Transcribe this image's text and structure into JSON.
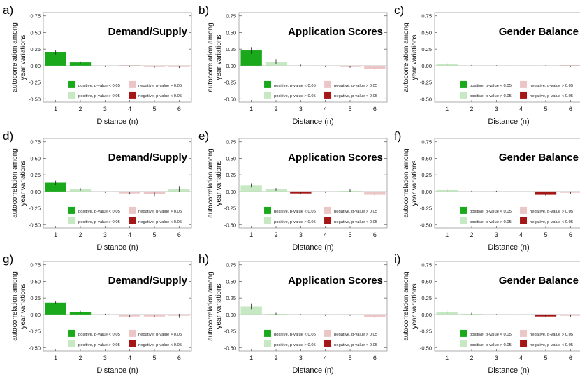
{
  "figure": {
    "y_label_line1": "autocorrelation among",
    "y_label_line2": "year variations",
    "x_label": "Distance (n)"
  },
  "colors": {
    "pos_sig": "#19a91b",
    "pos_nonsig": "#c6e8c2",
    "neg_nonsig": "#ecc6c6",
    "neg_sig": "#a51616",
    "error_bar": "#1a1a1a",
    "frame": "#9a9a9a"
  },
  "legend": {
    "pos_sig": "positive, p-value < 0.05",
    "pos_nonsig": "positive, p-value > 0.05",
    "neg_nonsig": "negative, p-value > 0.05",
    "neg_sig": "negative, p-value < 0.05"
  },
  "chart_data": [
    {
      "panel_label": "a)",
      "title": "Demand/Supply",
      "type": "bar",
      "categories": [
        "1",
        "2",
        "3",
        "4",
        "5",
        "6"
      ],
      "values": [
        0.2,
        0.05,
        -0.01,
        -0.01,
        -0.02,
        -0.02
      ],
      "errors": [
        0.03,
        0.015,
        0.01,
        0.01,
        0.01,
        0.015
      ],
      "significance": [
        "pos_sig",
        "pos_sig",
        "neg_nonsig",
        "neg_sig",
        "neg_nonsig",
        "neg_nonsig"
      ],
      "ylim": [
        -0.55,
        0.8
      ],
      "yticks": [
        "0.75",
        "0.50",
        "0.25",
        "0.00",
        "-0.25",
        "-0.50"
      ],
      "xlabel": "Distance (n)",
      "ylabel": "autocorrelation among year variations"
    },
    {
      "panel_label": "b)",
      "title": "Application Scores",
      "type": "bar",
      "categories": [
        "1",
        "2",
        "3",
        "4",
        "5",
        "6"
      ],
      "values": [
        0.23,
        0.06,
        0.0,
        -0.01,
        -0.02,
        -0.05
      ],
      "errors": [
        0.05,
        0.03,
        0.015,
        0.01,
        0.01,
        0.02
      ],
      "significance": [
        "pos_sig",
        "pos_nonsig",
        "neg_nonsig",
        "neg_nonsig",
        "neg_nonsig",
        "neg_nonsig"
      ],
      "ylim": [
        -0.55,
        0.8
      ],
      "yticks": [
        "0.75",
        "0.50",
        "0.25",
        "0.00",
        "-0.25",
        "-0.50"
      ],
      "xlabel": "Distance (n)",
      "ylabel": "autocorrelation among year variations"
    },
    {
      "panel_label": "c)",
      "title": "Gender Balance",
      "type": "bar",
      "categories": [
        "1",
        "2",
        "3",
        "4",
        "5",
        "6"
      ],
      "values": [
        0.02,
        0.0,
        0.0,
        0.0,
        0.0,
        -0.01
      ],
      "errors": [
        0.02,
        0.01,
        0.005,
        0.005,
        0.005,
        0.01
      ],
      "significance": [
        "pos_nonsig",
        "neg_nonsig",
        "neg_nonsig",
        "neg_nonsig",
        "neg_nonsig",
        "neg_sig"
      ],
      "ylim": [
        -0.55,
        0.8
      ],
      "yticks": [
        "0.75",
        "0.50",
        "0.25",
        "0.00",
        "-0.25",
        "-0.50"
      ],
      "xlabel": "Distance (n)",
      "ylabel": "autocorrelation among year variations"
    },
    {
      "panel_label": "d)",
      "title": "Demand/Supply",
      "type": "bar",
      "categories": [
        "1",
        "2",
        "3",
        "4",
        "5",
        "6"
      ],
      "values": [
        0.13,
        0.03,
        -0.01,
        -0.03,
        -0.04,
        0.04
      ],
      "errors": [
        0.03,
        0.02,
        0.01,
        0.015,
        0.04,
        0.04
      ],
      "significance": [
        "pos_sig",
        "pos_nonsig",
        "neg_nonsig",
        "neg_nonsig",
        "neg_nonsig",
        "pos_nonsig"
      ],
      "ylim": [
        -0.55,
        0.8
      ],
      "yticks": [
        "0.75",
        "0.50",
        "0.25",
        "0.00",
        "-0.25",
        "-0.50"
      ],
      "xlabel": "Distance (n)",
      "ylabel": "autocorrelation among year variations"
    },
    {
      "panel_label": "e)",
      "title": "Application Scores",
      "type": "bar",
      "categories": [
        "1",
        "2",
        "3",
        "4",
        "5",
        "6"
      ],
      "values": [
        0.09,
        0.03,
        -0.03,
        -0.01,
        0.01,
        -0.05
      ],
      "errors": [
        0.03,
        0.02,
        0.01,
        0.01,
        0.02,
        0.03
      ],
      "significance": [
        "pos_nonsig",
        "pos_nonsig",
        "neg_sig",
        "neg_nonsig",
        "pos_nonsig",
        "neg_nonsig"
      ],
      "ylim": [
        -0.55,
        0.8
      ],
      "yticks": [
        "0.75",
        "0.50",
        "0.25",
        "0.00",
        "-0.25",
        "-0.50"
      ],
      "xlabel": "Distance (n)",
      "ylabel": "autocorrelation among year variations"
    },
    {
      "panel_label": "f)",
      "title": "Gender Balance",
      "type": "bar",
      "categories": [
        "1",
        "2",
        "3",
        "4",
        "5",
        "6"
      ],
      "values": [
        0.02,
        0.0,
        0.0,
        -0.01,
        -0.05,
        -0.02
      ],
      "errors": [
        0.03,
        0.01,
        0.01,
        0.01,
        0.015,
        0.02
      ],
      "significance": [
        "pos_nonsig",
        "neg_nonsig",
        "neg_nonsig",
        "neg_nonsig",
        "neg_sig",
        "neg_nonsig"
      ],
      "ylim": [
        -0.55,
        0.8
      ],
      "yticks": [
        "0.75",
        "0.50",
        "0.25",
        "0.00",
        "-0.25",
        "-0.50"
      ],
      "xlabel": "Distance (n)",
      "ylabel": "autocorrelation among year variations"
    },
    {
      "panel_label": "g)",
      "title": "Demand/Supply",
      "type": "bar",
      "categories": [
        "1",
        "2",
        "3",
        "4",
        "5",
        "6"
      ],
      "values": [
        0.18,
        0.04,
        0.0,
        -0.03,
        -0.03,
        -0.02
      ],
      "errors": [
        0.025,
        0.015,
        0.01,
        0.015,
        0.015,
        0.03
      ],
      "significance": [
        "pos_sig",
        "pos_sig",
        "neg_nonsig",
        "neg_nonsig",
        "neg_nonsig",
        "neg_nonsig"
      ],
      "ylim": [
        -0.55,
        0.8
      ],
      "yticks": [
        "0.75",
        "0.50",
        "0.25",
        "0.00",
        "-0.25",
        "-0.50"
      ],
      "xlabel": "Distance (n)",
      "ylabel": "autocorrelation among year variations"
    },
    {
      "panel_label": "h)",
      "title": "Application Scores",
      "type": "bar",
      "categories": [
        "1",
        "2",
        "3",
        "4",
        "5",
        "6"
      ],
      "values": [
        0.12,
        0.01,
        0.0,
        -0.01,
        -0.01,
        -0.04
      ],
      "errors": [
        0.04,
        0.015,
        0.005,
        0.01,
        0.01,
        0.02
      ],
      "significance": [
        "pos_nonsig",
        "pos_nonsig",
        "neg_nonsig",
        "neg_nonsig",
        "neg_nonsig",
        "neg_nonsig"
      ],
      "ylim": [
        -0.55,
        0.8
      ],
      "yticks": [
        "0.75",
        "0.50",
        "0.25",
        "0.00",
        "-0.25",
        "-0.50"
      ],
      "xlabel": "Distance (n)",
      "ylabel": "autocorrelation among year variations"
    },
    {
      "panel_label": "i)",
      "title": "Gender Balance",
      "type": "bar",
      "categories": [
        "1",
        "2",
        "3",
        "4",
        "5",
        "6"
      ],
      "values": [
        0.03,
        0.01,
        0.0,
        0.0,
        -0.03,
        -0.02
      ],
      "errors": [
        0.025,
        0.015,
        0.005,
        0.005,
        0.015,
        0.02
      ],
      "significance": [
        "pos_nonsig",
        "pos_nonsig",
        "neg_nonsig",
        "neg_nonsig",
        "neg_sig",
        "neg_nonsig"
      ],
      "ylim": [
        -0.55,
        0.8
      ],
      "yticks": [
        "0.75",
        "0.50",
        "0.25",
        "0.00",
        "-0.25",
        "-0.50"
      ],
      "xlabel": "Distance (n)",
      "ylabel": "autocorrelation among year variations"
    }
  ]
}
